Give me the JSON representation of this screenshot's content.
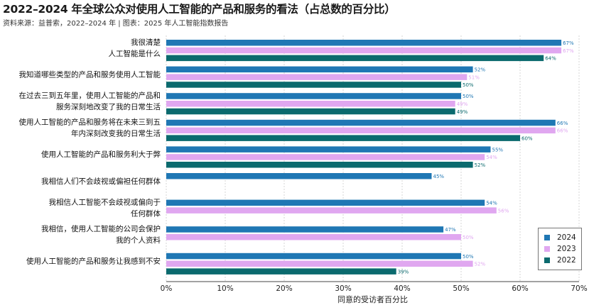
{
  "title": "2022–2024 年全球公众对使用人工智能的产品和服务的看法（占总数的百分比）",
  "source": "资料来源：益普索，2022–2024 年 | 图表：2025 年人工智能指数报告",
  "chart_data": {
    "type": "bar",
    "orientation": "horizontal",
    "title": "2022–2024 年全球公众对使用人工智能的产品和服务的看法（占总数的百分比）",
    "xlabel": "同意的受访者百分比",
    "xlim": [
      0,
      70
    ],
    "xticks": [
      "0%",
      "10%",
      "20%",
      "30%",
      "40%",
      "50%",
      "60%",
      "70%"
    ],
    "grid": true,
    "legend_position": "bottom-right",
    "categories": [
      [
        "我很清楚",
        "人工智能是什么"
      ],
      [
        "我知道哪些类型的产品和服务使用人工智能"
      ],
      [
        "在过去三到五年里，使用人工智能的产品和",
        "服务深刻地改变了我的日常生活"
      ],
      [
        "使用人工智能的产品和服务将在未来三到五",
        "年内深刻改变我的日常生活"
      ],
      [
        "使用人工智能的产品和服务利大于弊"
      ],
      [
        "我相信人们不会歧视或偏袒任何群体"
      ],
      [
        "我相信人工智能不会歧视或偏向于",
        "任何群体"
      ],
      [
        "我相信，使用人工智能的公司会保护",
        "我的个人资料"
      ],
      [
        "使用人工智能的产品和服务让我感到不安"
      ]
    ],
    "series": [
      {
        "name": "2024",
        "color": "#1f77b4",
        "values": [
          67,
          52,
          50,
          66,
          55,
          45,
          54,
          47,
          50
        ]
      },
      {
        "name": "2023",
        "color": "#e0a7f0",
        "values": [
          67,
          51,
          49,
          66,
          54,
          null,
          56,
          50,
          52
        ]
      },
      {
        "name": "2022",
        "color": "#0b6a6e",
        "values": [
          64,
          50,
          49,
          60,
          52,
          null,
          null,
          null,
          39
        ]
      }
    ]
  }
}
